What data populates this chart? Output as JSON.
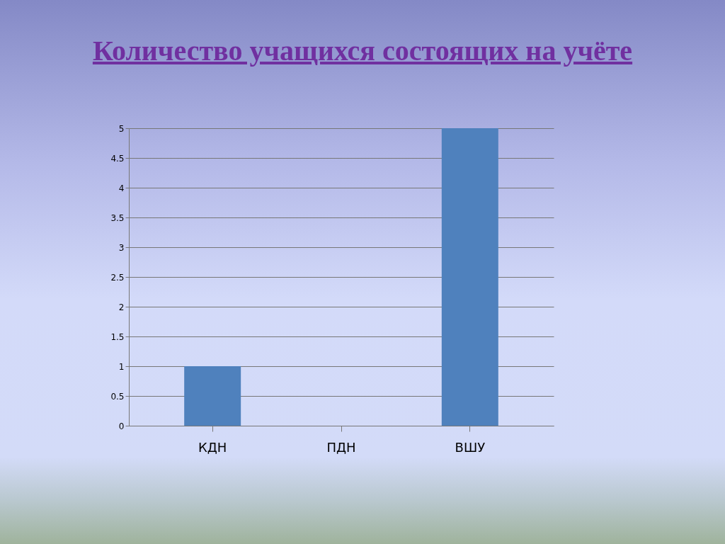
{
  "chart_data": {
    "type": "bar",
    "title": "Количество учащихся состоящих на учёте",
    "categories": [
      "КДН",
      "ПДН",
      "ВШУ"
    ],
    "values": [
      1,
      0,
      5
    ],
    "color": "#4f81bd",
    "ylim": [
      0,
      5
    ],
    "yticks": [
      0,
      0.5,
      1,
      1.5,
      2,
      2.5,
      3,
      3.5,
      4,
      4.5,
      5
    ],
    "grid": true
  }
}
